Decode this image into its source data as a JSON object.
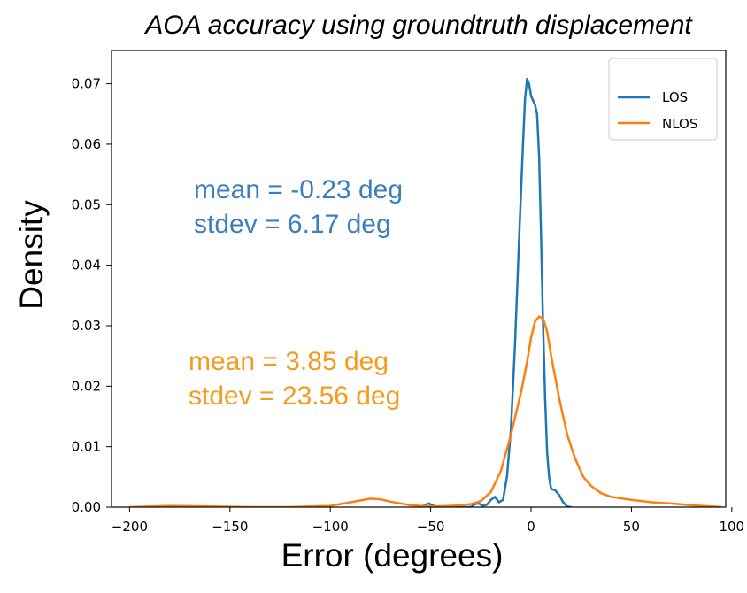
{
  "chart_data": {
    "type": "line",
    "title": "AOA accuracy using groundtruth displacement",
    "xlabel": "Error (degrees)",
    "ylabel": "Density",
    "xlim": [
      -209,
      97
    ],
    "ylim": [
      0,
      0.0755
    ],
    "x_ticks": [
      -200,
      -150,
      -100,
      -50,
      0,
      50,
      100
    ],
    "x_tick_labels": [
      "−200",
      "−150",
      "−100",
      "−50",
      "0",
      "50",
      "100"
    ],
    "y_ticks": [
      0,
      0.01,
      0.02,
      0.03,
      0.04,
      0.05,
      0.06,
      0.07
    ],
    "y_tick_labels": [
      "0.00",
      "0.01",
      "0.02",
      "0.03",
      "0.04",
      "0.05",
      "0.06",
      "0.07"
    ],
    "grid": false,
    "legend_position": "top-right",
    "series": [
      {
        "name": "LOS",
        "color": "#1f77b4",
        "points": [
          [
            -55,
            0.0
          ],
          [
            -53,
            0.0003
          ],
          [
            -51,
            0.0006
          ],
          [
            -49,
            0.0003
          ],
          [
            -47,
            0.0
          ],
          [
            -30,
            0.0
          ],
          [
            -28,
            0.0005
          ],
          [
            -26,
            0.0006
          ],
          [
            -24,
            0.0002
          ],
          [
            -22,
            0.0004
          ],
          [
            -20,
            0.0012
          ],
          [
            -18,
            0.0017
          ],
          [
            -16,
            0.0008
          ],
          [
            -14,
            0.0012
          ],
          [
            -12,
            0.005
          ],
          [
            -10,
            0.013
          ],
          [
            -8,
            0.027
          ],
          [
            -6,
            0.044
          ],
          [
            -4,
            0.06
          ],
          [
            -3,
            0.0675
          ],
          [
            -2,
            0.0708
          ],
          [
            -1,
            0.07
          ],
          [
            0,
            0.068
          ],
          [
            1,
            0.0672
          ],
          [
            2,
            0.0665
          ],
          [
            3,
            0.065
          ],
          [
            4,
            0.058
          ],
          [
            5,
            0.045
          ],
          [
            6,
            0.03
          ],
          [
            7,
            0.018
          ],
          [
            8,
            0.009
          ],
          [
            9,
            0.005
          ],
          [
            10,
            0.003
          ],
          [
            12,
            0.0028
          ],
          [
            14,
            0.002
          ],
          [
            16,
            0.0008
          ],
          [
            18,
            0.0001
          ],
          [
            20,
            0.0
          ]
        ]
      },
      {
        "name": "NLOS",
        "color": "#ff7f0e",
        "points": [
          [
            -200,
            0.0
          ],
          [
            -180,
            0.0002
          ],
          [
            -160,
            0.0001
          ],
          [
            -140,
            0.0
          ],
          [
            -120,
            0.0
          ],
          [
            -100,
            0.0002
          ],
          [
            -90,
            0.0008
          ],
          [
            -80,
            0.0014
          ],
          [
            -75,
            0.0013
          ],
          [
            -70,
            0.0009
          ],
          [
            -60,
            0.0003
          ],
          [
            -50,
            0.0001
          ],
          [
            -40,
            0.0002
          ],
          [
            -30,
            0.0005
          ],
          [
            -25,
            0.001
          ],
          [
            -20,
            0.0025
          ],
          [
            -15,
            0.006
          ],
          [
            -10,
            0.012
          ],
          [
            -5,
            0.019
          ],
          [
            -2,
            0.024
          ],
          [
            0,
            0.028
          ],
          [
            2,
            0.0307
          ],
          [
            4,
            0.0315
          ],
          [
            6,
            0.0312
          ],
          [
            8,
            0.029
          ],
          [
            10,
            0.025
          ],
          [
            14,
            0.018
          ],
          [
            18,
            0.012
          ],
          [
            22,
            0.008
          ],
          [
            26,
            0.005
          ],
          [
            30,
            0.0035
          ],
          [
            35,
            0.0023
          ],
          [
            40,
            0.0017
          ],
          [
            50,
            0.0012
          ],
          [
            60,
            0.0008
          ],
          [
            70,
            0.0006
          ],
          [
            80,
            0.0003
          ],
          [
            90,
            0.0001
          ],
          [
            95,
            0.0
          ]
        ]
      }
    ],
    "annotations": [
      {
        "lines": [
          "mean = -0.23 deg",
          "stdev = 6.17 deg"
        ],
        "color": "#3d7fbd"
      },
      {
        "lines": [
          "mean = 3.85 deg",
          "stdev = 23.56 deg"
        ],
        "color": "#f39c1f"
      }
    ]
  }
}
